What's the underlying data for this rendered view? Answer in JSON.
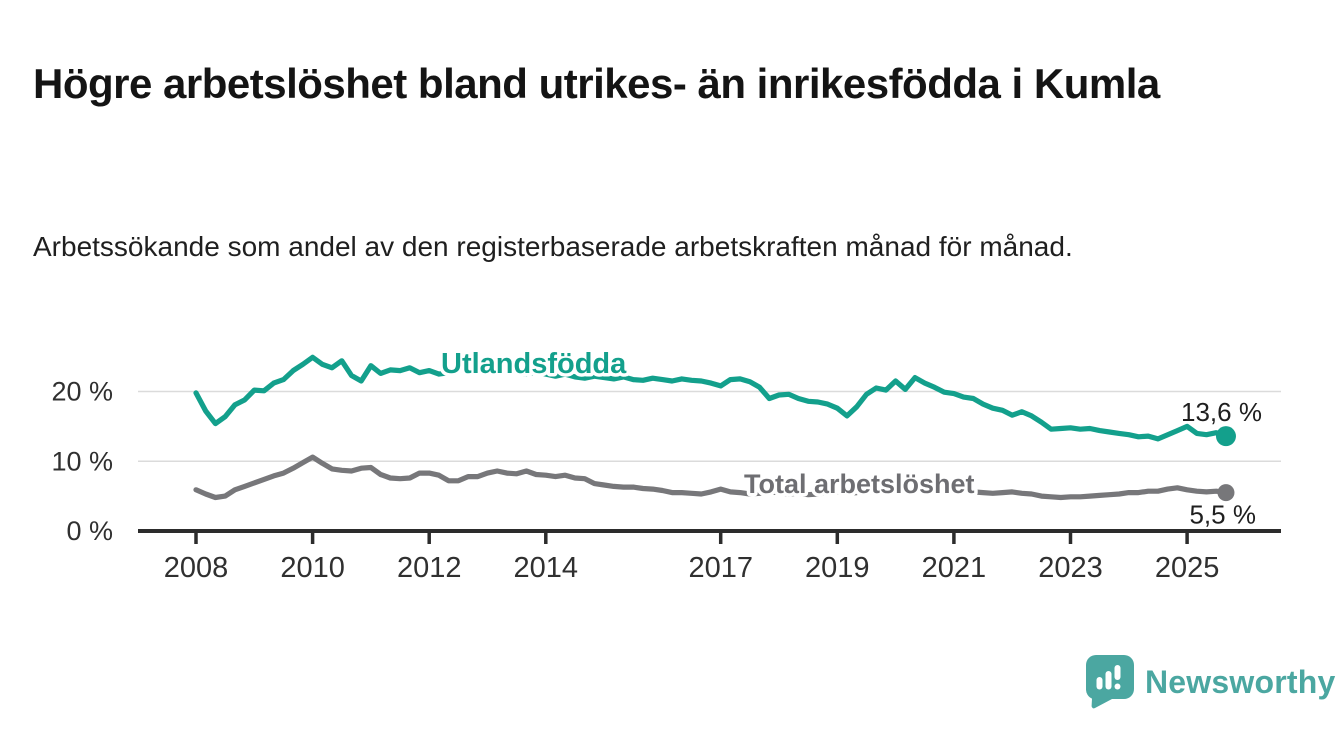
{
  "header": {
    "title": "Högre arbetslöshet bland utrikes- än inrikesfödda i Kumla",
    "subtitle": "Arbetssökande som andel av den registerbaserade arbetskraften månad för månad."
  },
  "branding": {
    "wordmark": "Newsworthy",
    "logo_color": "#4BA7A1"
  },
  "colors": {
    "accent_teal": "#13A08C",
    "series_gray": "#77777A",
    "gray_label": "#6E6E72",
    "axis": "#2C2C2C",
    "gridline": "#DBDBDB",
    "tick_text": "#303030",
    "value_text": "#1F1F1F"
  },
  "chart_data": {
    "type": "line",
    "x_start": 2008,
    "x_step": 0.166667,
    "x_ticks": [
      {
        "year": 2008,
        "label": "2008"
      },
      {
        "year": 2010,
        "label": "2010"
      },
      {
        "year": 2012,
        "label": "2012"
      },
      {
        "year": 2014,
        "label": "2014"
      },
      {
        "year": 2017,
        "label": "2017"
      },
      {
        "year": 2019,
        "label": "2019"
      },
      {
        "year": 2021,
        "label": "2021"
      },
      {
        "year": 2023,
        "label": "2023"
      },
      {
        "year": 2025,
        "label": "2025"
      }
    ],
    "y_ticks": [
      {
        "value": 0,
        "label": "0 %"
      },
      {
        "value": 10,
        "label": "10 %"
      },
      {
        "value": 20,
        "label": "20 %"
      }
    ],
    "ylim": [
      0,
      27
    ],
    "grid": "horizontal-only",
    "legend_position": "inline-labels",
    "series": [
      {
        "name": "Utlandsfödda",
        "color": "#13A08C",
        "end_label": "13,6 %",
        "values": [
          19.8,
          17.2,
          15.4,
          16.4,
          18.1,
          18.8,
          20.2,
          20.1,
          21.2,
          21.7,
          23.0,
          23.9,
          24.9,
          23.9,
          23.4,
          24.4,
          22.3,
          21.5,
          23.7,
          22.6,
          23.1,
          23.0,
          23.4,
          22.7,
          23.0,
          22.5,
          22.7,
          23.0,
          23.4,
          23.1,
          23.3,
          22.9,
          23.2,
          22.8,
          22.5,
          22.8,
          22.5,
          22.2,
          22.5,
          22.1,
          21.9,
          22.2,
          22.0,
          21.8,
          22.1,
          21.7,
          21.6,
          21.9,
          21.7,
          21.5,
          21.8,
          21.6,
          21.5,
          21.2,
          20.8,
          21.7,
          21.8,
          21.4,
          20.6,
          19.0,
          19.5,
          19.6,
          19.0,
          18.6,
          18.5,
          18.2,
          17.6,
          16.5,
          17.8,
          19.6,
          20.5,
          20.2,
          21.5,
          20.3,
          22.0,
          21.2,
          20.6,
          19.9,
          19.7,
          19.2,
          19.0,
          18.2,
          17.6,
          17.3,
          16.6,
          17.1,
          16.5,
          15.6,
          14.6,
          14.7,
          14.8,
          14.6,
          14.7,
          14.4,
          14.2,
          14.0,
          13.8,
          13.5,
          13.6,
          13.2,
          13.8,
          14.4,
          15.0,
          14.0,
          13.8,
          14.1,
          13.6
        ]
      },
      {
        "name": "Total arbetslöshet",
        "color": "#77777A",
        "end_label": "5,5 %",
        "values": [
          5.9,
          5.3,
          4.8,
          5.0,
          5.9,
          6.4,
          6.9,
          7.4,
          7.9,
          8.3,
          9.0,
          9.8,
          10.6,
          9.7,
          8.9,
          8.7,
          8.6,
          9.0,
          9.1,
          8.1,
          7.6,
          7.5,
          7.6,
          8.3,
          8.3,
          8.0,
          7.2,
          7.2,
          7.8,
          7.8,
          8.3,
          8.6,
          8.3,
          8.2,
          8.6,
          8.1,
          8.0,
          7.8,
          8.0,
          7.6,
          7.5,
          6.8,
          6.6,
          6.4,
          6.3,
          6.3,
          6.1,
          6.0,
          5.8,
          5.5,
          5.5,
          5.4,
          5.3,
          5.6,
          6.0,
          5.6,
          5.5,
          5.3,
          5.4,
          5.6,
          5.5,
          5.3,
          5.4,
          5.2,
          5.3,
          5.5,
          5.6,
          5.4,
          5.5,
          5.7,
          5.6,
          5.8,
          6.0,
          6.2,
          6.3,
          6.2,
          6.0,
          5.9,
          5.8,
          5.7,
          5.6,
          5.5,
          5.4,
          5.5,
          5.6,
          5.4,
          5.3,
          5.0,
          4.9,
          4.8,
          4.9,
          4.9,
          5.0,
          5.1,
          5.2,
          5.3,
          5.5,
          5.5,
          5.7,
          5.7,
          6.0,
          6.2,
          5.9,
          5.7,
          5.6,
          5.7,
          5.5
        ]
      }
    ]
  }
}
